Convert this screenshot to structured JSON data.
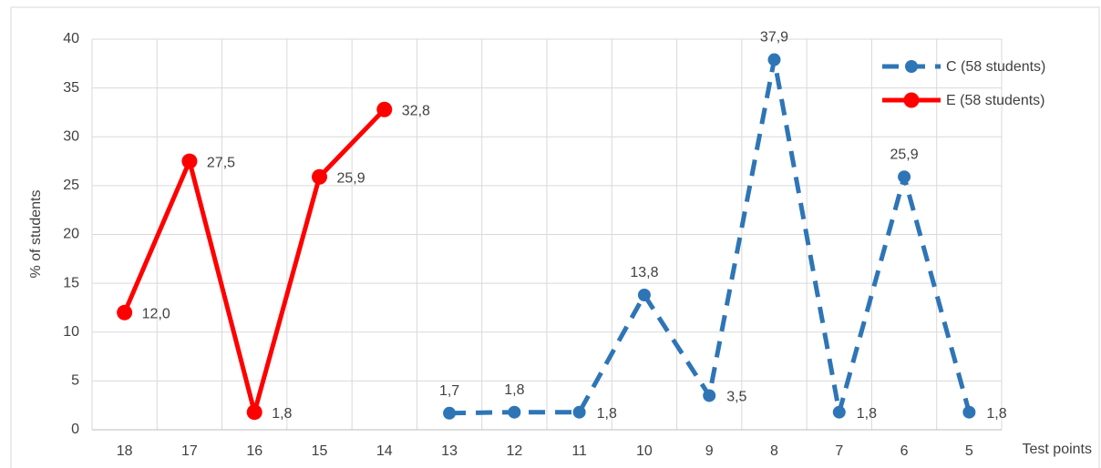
{
  "chart_data": {
    "type": "line",
    "categories": [
      "18",
      "17",
      "16",
      "15",
      "14",
      "13",
      "12",
      "11",
      "10",
      "9",
      "8",
      "7",
      "6",
      "5"
    ],
    "series": [
      {
        "name": "C (58  students)",
        "color": "#2e75b6",
        "dashed": true,
        "values": [
          null,
          null,
          null,
          null,
          null,
          1.7,
          1.8,
          1.8,
          13.8,
          3.5,
          37.9,
          1.8,
          25.9,
          1.8
        ],
        "value_labels": [
          null,
          null,
          null,
          null,
          null,
          "1,7",
          "1,8",
          "1,8",
          "13,8",
          "3,5",
          "37,9",
          "1,8",
          "25,9",
          "1,8"
        ]
      },
      {
        "name": "E (58  students)",
        "color": "#ff0000",
        "dashed": false,
        "values": [
          12.0,
          27.5,
          1.8,
          25.9,
          32.8,
          null,
          null,
          null,
          null,
          null,
          null,
          null,
          null,
          null
        ],
        "value_labels": [
          "12,0",
          "27,5",
          "1,8",
          "25,9",
          "32,8",
          null,
          null,
          null,
          null,
          null,
          null,
          null,
          null,
          null
        ]
      }
    ],
    "ylabel": "% of students",
    "xlabel": "Test points",
    "ylim": [
      0,
      40
    ],
    "yticks": [
      0,
      5,
      10,
      15,
      20,
      25,
      30,
      35,
      40
    ],
    "grid": true,
    "legend": "upper right"
  }
}
